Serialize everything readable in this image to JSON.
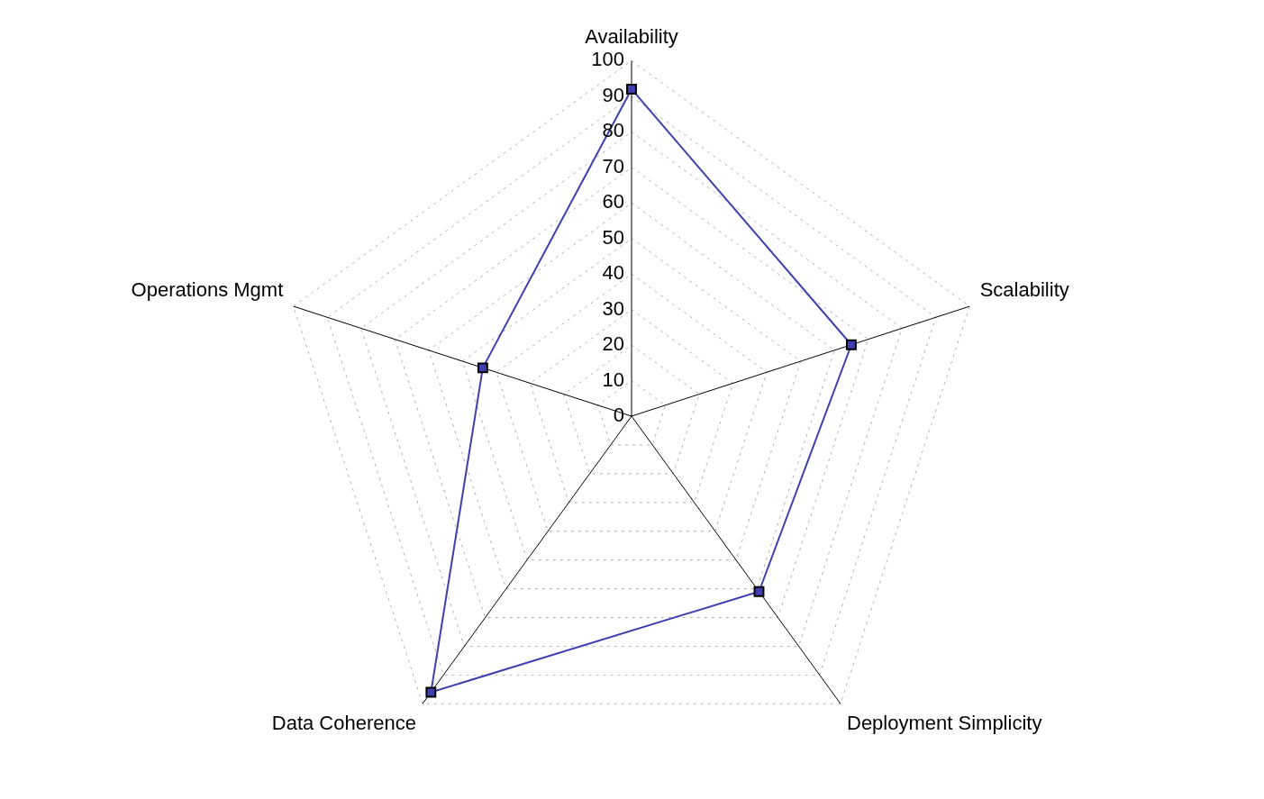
{
  "chart_data": {
    "type": "radar",
    "categories": [
      "Availability",
      "Scalability",
      "Deployment Simplicity",
      "Data Coherence",
      "Operations Mgmt"
    ],
    "series": [
      {
        "color": "#3f3fb0",
        "values": [
          92,
          65,
          61,
          96,
          44
        ]
      }
    ],
    "ylim": [
      0,
      100
    ],
    "yticks": [
      0,
      10,
      20,
      30,
      40,
      50,
      60,
      70,
      80,
      90,
      100
    ],
    "grid": true,
    "marker": "square"
  }
}
